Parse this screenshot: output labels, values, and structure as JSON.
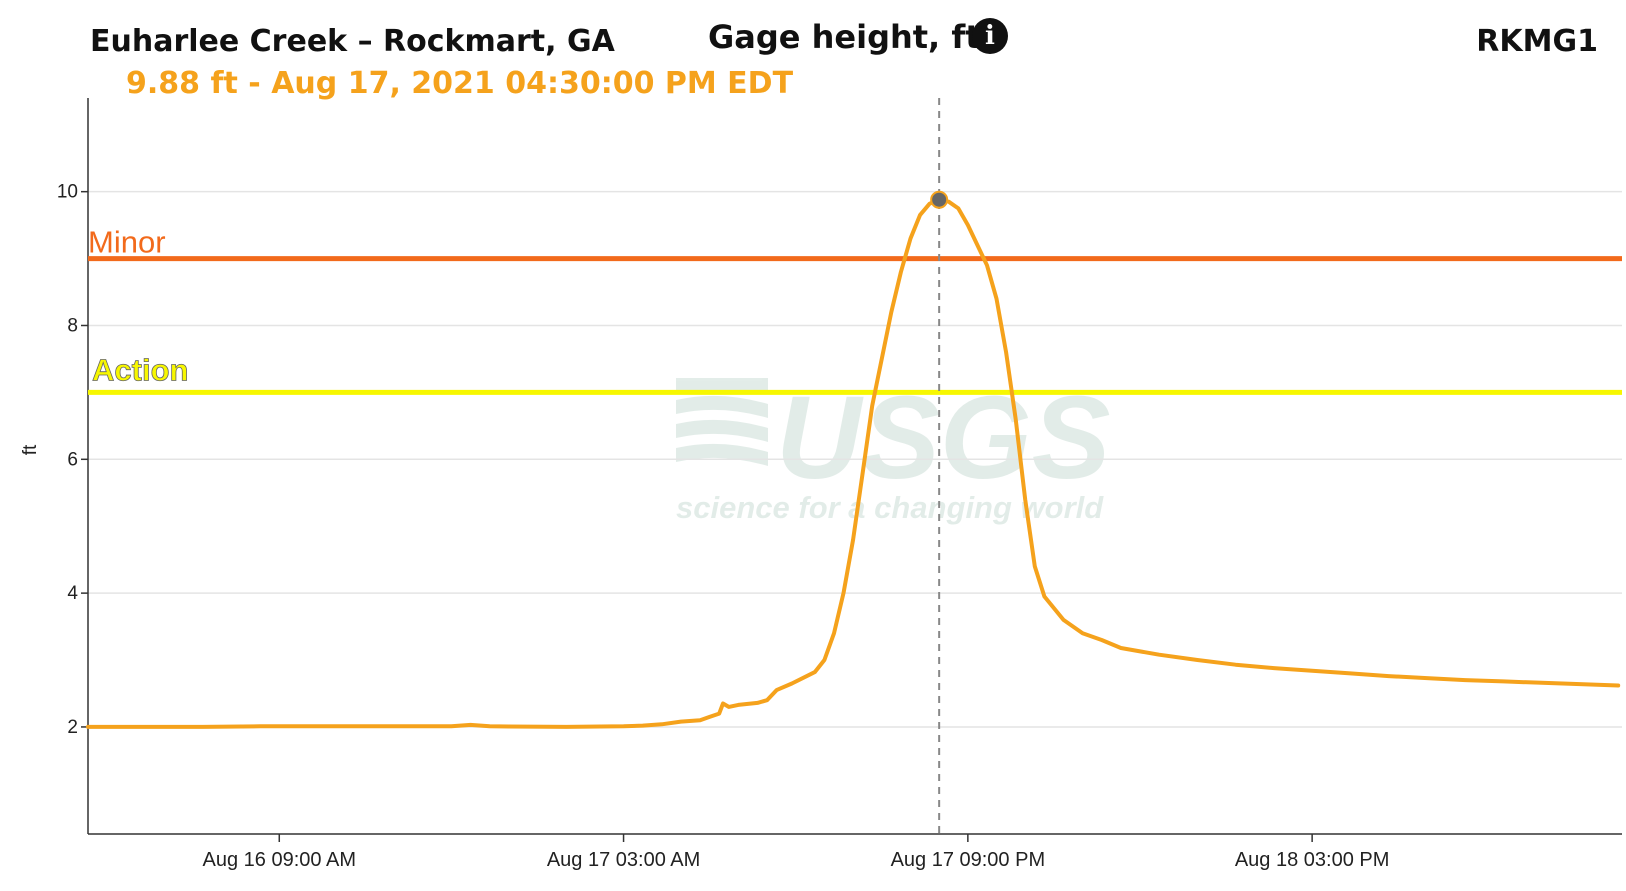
{
  "header": {
    "site_title": "Euharlee Creek – Rockmart, GA",
    "chart_title": "Gage height, ft",
    "site_id": "RKMG1",
    "readout": "9.88 ft - Aug 17, 2021 04:30:00 PM EDT",
    "info_icon": "info-icon"
  },
  "watermark": {
    "logo": "USGS",
    "tagline": "science for a changing world"
  },
  "colors": {
    "series": "#f5a21c",
    "minor": "#f26a1b",
    "action": "#f7f700",
    "grid": "#e4e4e4",
    "crosshair": "#888888"
  },
  "chart_data": {
    "type": "line",
    "title": "Gage height, ft",
    "ylabel": "ft",
    "xlabel": "",
    "ylim": [
      0.4,
      11.4
    ],
    "xlim_hours": [
      0,
      80.2
    ],
    "x_ticks": [
      "Aug 16 09:00 AM",
      "Aug 17 03:00 AM",
      "Aug 17 09:00 PM",
      "Aug 18 03:00 PM"
    ],
    "y_ticks": [
      2,
      4,
      6,
      8,
      10
    ],
    "grid": true,
    "thresholds": [
      {
        "name": "Minor",
        "value": 9.0
      },
      {
        "name": "Action",
        "value": 7.0
      }
    ],
    "highlight": {
      "time": "Aug 17, 2021 04:30:00 PM EDT",
      "value": 9.88
    },
    "series": [
      {
        "name": "Gage height",
        "points": [
          [
            0,
            2.0
          ],
          [
            6,
            2.0
          ],
          [
            9,
            2.01
          ],
          [
            12,
            2.01
          ],
          [
            19,
            2.01
          ],
          [
            20,
            2.03
          ],
          [
            21,
            2.01
          ],
          [
            25,
            2.0
          ],
          [
            28,
            2.01
          ],
          [
            29,
            2.02
          ],
          [
            30,
            2.04
          ],
          [
            31,
            2.08
          ],
          [
            32,
            2.1
          ],
          [
            32.5,
            2.15
          ],
          [
            33,
            2.2
          ],
          [
            33.2,
            2.35
          ],
          [
            33.5,
            2.3
          ],
          [
            34,
            2.33
          ],
          [
            35,
            2.36
          ],
          [
            35.5,
            2.4
          ],
          [
            36,
            2.55
          ],
          [
            36.8,
            2.65
          ],
          [
            37.5,
            2.75
          ],
          [
            38,
            2.82
          ],
          [
            38.5,
            3.0
          ],
          [
            39,
            3.4
          ],
          [
            39.5,
            4.0
          ],
          [
            40,
            4.8
          ],
          [
            40.5,
            5.8
          ],
          [
            41,
            6.8
          ],
          [
            42,
            8.2
          ],
          [
            42.5,
            8.8
          ],
          [
            43,
            9.3
          ],
          [
            43.5,
            9.65
          ],
          [
            44,
            9.82
          ],
          [
            44.5,
            9.88
          ],
          [
            45,
            9.85
          ],
          [
            45.5,
            9.75
          ],
          [
            46,
            9.5
          ],
          [
            47,
            8.9
          ],
          [
            47.5,
            8.4
          ],
          [
            48,
            7.6
          ],
          [
            48.5,
            6.6
          ],
          [
            49,
            5.4
          ],
          [
            49.5,
            4.4
          ],
          [
            50,
            3.95
          ],
          [
            51,
            3.6
          ],
          [
            52,
            3.4
          ],
          [
            53,
            3.3
          ],
          [
            54,
            3.18
          ],
          [
            56,
            3.08
          ],
          [
            58,
            3.0
          ],
          [
            60,
            2.93
          ],
          [
            62,
            2.88
          ],
          [
            64,
            2.84
          ],
          [
            66,
            2.8
          ],
          [
            68,
            2.76
          ],
          [
            70,
            2.73
          ],
          [
            72,
            2.7
          ],
          [
            74,
            2.68
          ],
          [
            76,
            2.66
          ],
          [
            78,
            2.64
          ],
          [
            80,
            2.62
          ]
        ]
      }
    ]
  }
}
